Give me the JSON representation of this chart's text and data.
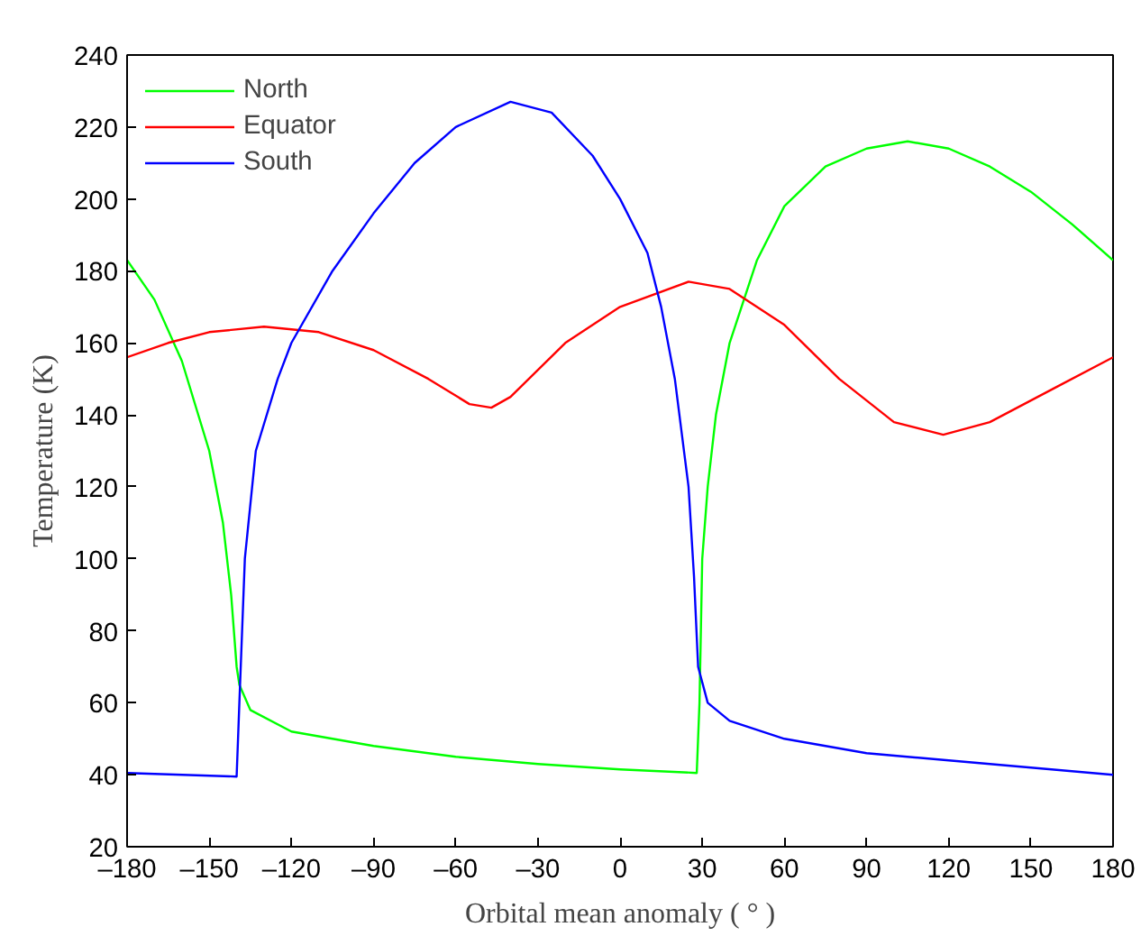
{
  "chart_data": {
    "type": "line",
    "xlabel": "Orbital mean anomaly ( ° )",
    "ylabel": "Temperature (K)",
    "xlim": [
      -180,
      180
    ],
    "ylim": [
      20,
      240
    ],
    "xticks": [
      {
        "value": -180,
        "label": "–180"
      },
      {
        "value": -150,
        "label": "–150"
      },
      {
        "value": -120,
        "label": "–120"
      },
      {
        "value": -90,
        "label": "–90"
      },
      {
        "value": -60,
        "label": "–60"
      },
      {
        "value": -30,
        "label": "–30"
      },
      0,
      30,
      60,
      90,
      120,
      150,
      180
    ],
    "yticks": [
      20,
      40,
      60,
      80,
      100,
      120,
      140,
      160,
      180,
      200,
      220,
      240
    ],
    "grid": false,
    "legend": "top left",
    "marker": "none",
    "line_style": "solid",
    "series": [
      {
        "name": "North",
        "color": "#00ff00",
        "x": [
          -180,
          -170,
          -160,
          -150,
          -145,
          -142,
          -140,
          -139,
          -135,
          -120,
          -90,
          -60,
          -30,
          0,
          28,
          29,
          30,
          32,
          35,
          40,
          50,
          60,
          75,
          90,
          105,
          120,
          135,
          150,
          165,
          180
        ],
        "values": [
          183,
          172,
          155,
          130,
          110,
          90,
          70,
          65,
          58,
          52,
          48,
          45,
          43,
          41.5,
          40.5,
          60,
          100,
          120,
          140,
          160,
          183,
          198,
          209,
          214,
          216,
          214,
          209,
          202,
          193,
          183
        ]
      },
      {
        "name": "Equator",
        "color": "#ff0000",
        "x": [
          -180,
          -165,
          -150,
          -130,
          -110,
          -90,
          -70,
          -55,
          -47,
          -40,
          -20,
          0,
          25,
          40,
          60,
          80,
          100,
          118,
          135,
          160,
          180
        ],
        "values": [
          156,
          160,
          163,
          164.5,
          163,
          158,
          150,
          143,
          142,
          145,
          160,
          170,
          177,
          175,
          165,
          150,
          138,
          134.5,
          138,
          148,
          156
        ]
      },
      {
        "name": "South",
        "color": "#0000ff",
        "x": [
          -180,
          -140,
          -139,
          -137,
          -133,
          -125,
          -120,
          -105,
          -90,
          -75,
          -60,
          -40,
          -25,
          -10,
          0,
          10,
          15,
          20,
          25,
          27,
          28.5,
          32,
          40,
          60,
          90,
          120,
          150,
          180
        ],
        "values": [
          40.5,
          39.5,
          60,
          100,
          130,
          150,
          160,
          180,
          196,
          210,
          220,
          227,
          224,
          212,
          200,
          185,
          170,
          150,
          120,
          95,
          70,
          60,
          55,
          50,
          46,
          44,
          42,
          40
        ]
      }
    ]
  }
}
